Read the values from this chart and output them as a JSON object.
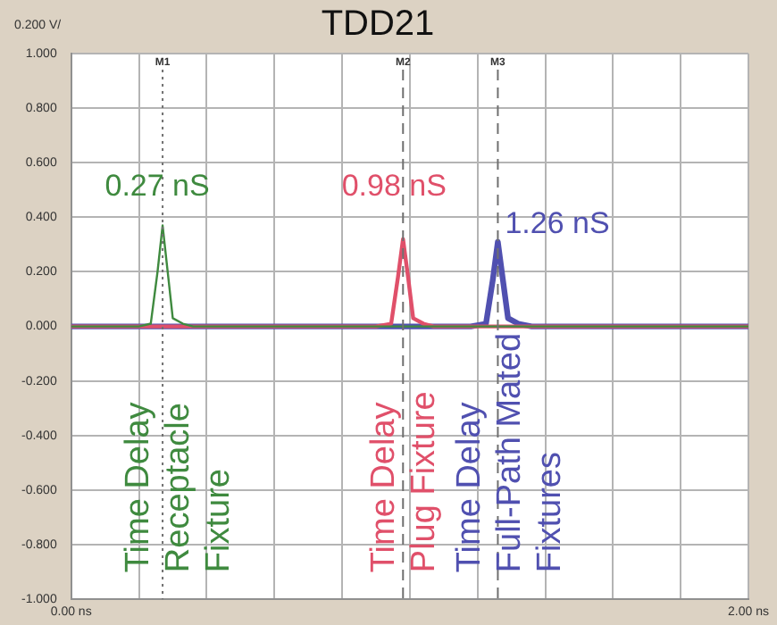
{
  "chart_data": {
    "type": "line",
    "title": "TDD21",
    "series": [
      {
        "color": "#3f8a3f",
        "x": [
          0,
          0.2,
          0.235,
          0.255,
          0.27,
          0.285,
          0.3,
          0.33,
          0.36,
          2
        ],
        "values": [
          0,
          0,
          0.01,
          0.2,
          0.37,
          0.2,
          0.03,
          0.01,
          0,
          0
        ]
      },
      {
        "color": "#e0506a",
        "x": [
          0,
          0.9,
          0.945,
          0.965,
          0.98,
          0.995,
          1.01,
          1.04,
          1.07,
          2
        ],
        "values": [
          0,
          0,
          0.01,
          0.18,
          0.32,
          0.18,
          0.03,
          0.01,
          0,
          0
        ]
      },
      {
        "color": "#5050b0",
        "x": [
          0,
          1.18,
          1.225,
          1.245,
          1.26,
          1.275,
          1.29,
          1.32,
          1.36,
          2
        ],
        "values": [
          0,
          0,
          0.01,
          0.17,
          0.31,
          0.17,
          0.03,
          0.01,
          0,
          0
        ]
      }
    ],
    "xlim": [
      0,
      2
    ],
    "xticks": [
      {
        "value": 0,
        "label": "0.00 ns"
      },
      {
        "value": 0.2,
        "label": null
      },
      {
        "value": 0.4,
        "label": null
      },
      {
        "value": 0.6,
        "label": null
      },
      {
        "value": 0.8,
        "label": null
      },
      {
        "value": 1,
        "label": null
      },
      {
        "value": 1.2,
        "label": null
      },
      {
        "value": 1.4,
        "label": null
      },
      {
        "value": 1.6,
        "label": null
      },
      {
        "value": 1.8,
        "label": null
      },
      {
        "value": 2,
        "label": "2.00 ns"
      }
    ],
    "ylim": [
      -1,
      1
    ],
    "yticks": [
      {
        "value": 1,
        "label": "1.000"
      },
      {
        "value": 0.8,
        "label": "0.800"
      },
      {
        "value": 0.6,
        "label": "0.600"
      },
      {
        "value": 0.4,
        "label": "0.400"
      },
      {
        "value": 0.2,
        "label": "0.200"
      },
      {
        "value": 0,
        "label": "0.000"
      },
      {
        "value": -0.2,
        "label": "-0.200"
      },
      {
        "value": -0.4,
        "label": "-0.400"
      },
      {
        "value": -0.6,
        "label": "-0.600"
      },
      {
        "value": -0.8,
        "label": "-0.800"
      },
      {
        "value": -1,
        "label": "-1.000"
      }
    ],
    "ref_lines": [
      {
        "axis": "x",
        "value": 0.27,
        "label": "M1",
        "color": "#707070",
        "line_style": "dotted"
      },
      {
        "axis": "x",
        "value": 0.98,
        "label": "M2",
        "color": "#707070",
        "line_style": "dashed"
      },
      {
        "axis": "x",
        "value": 1.26,
        "label": "M3",
        "color": "#707070",
        "line_style": "dashed"
      }
    ],
    "annotations": [
      "0.27 nS",
      "0.98 nS",
      "1.26 nS",
      "Time Delay\nReceptacle\nFixture",
      "Time Delay\nPlug Fixture",
      "Time Delay\nFull-Path Mated\nFixtures",
      "0.200 V/"
    ],
    "grid": true,
    "legend": false,
    "marker": "none",
    "line_style": "solid"
  }
}
